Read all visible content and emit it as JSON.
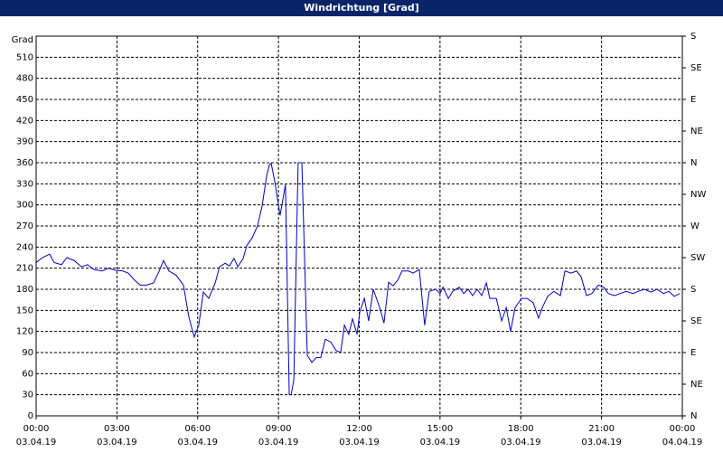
{
  "chart_data": {
    "type": "line",
    "title": "Windrichtung [Grad]",
    "y_label": "Grad",
    "series": [
      {
        "color": "#0000c8",
        "x": [
          0,
          0.23,
          0.5,
          0.67,
          0.94,
          1.14,
          1.41,
          1.68,
          1.91,
          2.15,
          2.45,
          2.69,
          2.95,
          3.22,
          3.42,
          3.63,
          3.86,
          4.1,
          4.36,
          4.57,
          4.73,
          4.93,
          5.2,
          5.47,
          5.67,
          5.87,
          6.04,
          6.21,
          6.41,
          6.65,
          6.81,
          7.02,
          7.18,
          7.35,
          7.49,
          7.69,
          7.82,
          8.02,
          8.22,
          8.39,
          8.56,
          8.66,
          8.73,
          8.86,
          9.06,
          9.26,
          9.4,
          9.47,
          9.57,
          9.73,
          9.87,
          10.07,
          10.24,
          10.41,
          10.57,
          10.74,
          10.94,
          11.14,
          11.31,
          11.45,
          11.61,
          11.75,
          11.92,
          12.02,
          12.19,
          12.35,
          12.52,
          12.76,
          12.92,
          13.09,
          13.26,
          13.43,
          13.59,
          13.83,
          14.0,
          14.23,
          14.43,
          14.6,
          14.84,
          15.0,
          15.11,
          15.31,
          15.47,
          15.71,
          15.88,
          16.05,
          16.21,
          16.38,
          16.55,
          16.72,
          16.85,
          17.09,
          17.29,
          17.46,
          17.62,
          17.79,
          18.03,
          18.23,
          18.46,
          18.66,
          18.8,
          19.0,
          19.23,
          19.47,
          19.64,
          19.87,
          20.07,
          20.24,
          20.44,
          20.64,
          20.88,
          21.08,
          21.25,
          21.48,
          21.69,
          21.92,
          22.16,
          22.36,
          22.59,
          22.83,
          23.06,
          23.3,
          23.5,
          23.7,
          23.9
        ],
        "values": [
          218,
          225,
          230,
          218,
          215,
          225,
          221,
          212,
          215,
          208,
          206,
          210,
          207,
          206,
          203,
          194,
          186,
          186,
          189,
          206,
          221,
          206,
          200,
          186,
          141,
          112,
          129,
          176,
          167,
          189,
          212,
          217,
          213,
          224,
          212,
          224,
          242,
          253,
          270,
          298,
          341,
          357,
          359,
          334,
          285,
          329,
          30,
          30,
          51,
          360,
          360,
          86,
          76,
          83,
          83,
          109,
          105,
          93,
          90,
          129,
          116,
          138,
          116,
          148,
          167,
          135,
          180,
          154,
          132,
          190,
          185,
          193,
          206,
          206,
          203,
          208,
          129,
          177,
          180,
          174,
          183,
          167,
          177,
          183,
          174,
          180,
          171,
          180,
          171,
          189,
          167,
          167,
          135,
          154,
          120,
          154,
          167,
          167,
          161,
          139,
          154,
          170,
          177,
          171,
          206,
          203,
          206,
          198,
          171,
          174,
          186,
          183,
          174,
          171,
          174,
          177,
          174,
          177,
          180,
          176,
          180,
          174,
          177,
          170,
          174
        ]
      }
    ],
    "xlim": [
      0,
      24
    ],
    "xticks": [
      {
        "value": 0,
        "label": "00:00",
        "date": "03.04.19"
      },
      {
        "value": 3,
        "label": "03:00",
        "date": "03.04.19"
      },
      {
        "value": 6,
        "label": "06:00",
        "date": "03.04.19"
      },
      {
        "value": 9,
        "label": "09:00",
        "date": "03.04.19"
      },
      {
        "value": 12,
        "label": "12:00",
        "date": "03.04.19"
      },
      {
        "value": 15,
        "label": "15:00",
        "date": "03.04.19"
      },
      {
        "value": 18,
        "label": "18:00",
        "date": "03.04.19"
      },
      {
        "value": 21,
        "label": "21:00",
        "date": "03.04.19"
      },
      {
        "value": 24,
        "label": "00:00",
        "date": "04.04.19"
      }
    ],
    "ylim": [
      0,
      540
    ],
    "yticks": [
      0,
      30,
      60,
      90,
      120,
      150,
      180,
      210,
      240,
      270,
      300,
      330,
      360,
      390,
      420,
      450,
      480,
      510
    ],
    "y2lim": [
      0,
      540
    ],
    "y2ticks": [
      {
        "value": 0,
        "label": "N"
      },
      {
        "value": 45,
        "label": "NE"
      },
      {
        "value": 90,
        "label": "E"
      },
      {
        "value": 135,
        "label": "SE"
      },
      {
        "value": 180,
        "label": "S"
      },
      {
        "value": 225,
        "label": "SW"
      },
      {
        "value": 270,
        "label": "W"
      },
      {
        "value": 315,
        "label": "NW"
      },
      {
        "value": 360,
        "label": "N"
      },
      {
        "value": 405,
        "label": "NE"
      },
      {
        "value": 450,
        "label": "E"
      },
      {
        "value": 495,
        "label": "SE"
      },
      {
        "value": 540,
        "label": "S"
      }
    ],
    "grid": true
  }
}
